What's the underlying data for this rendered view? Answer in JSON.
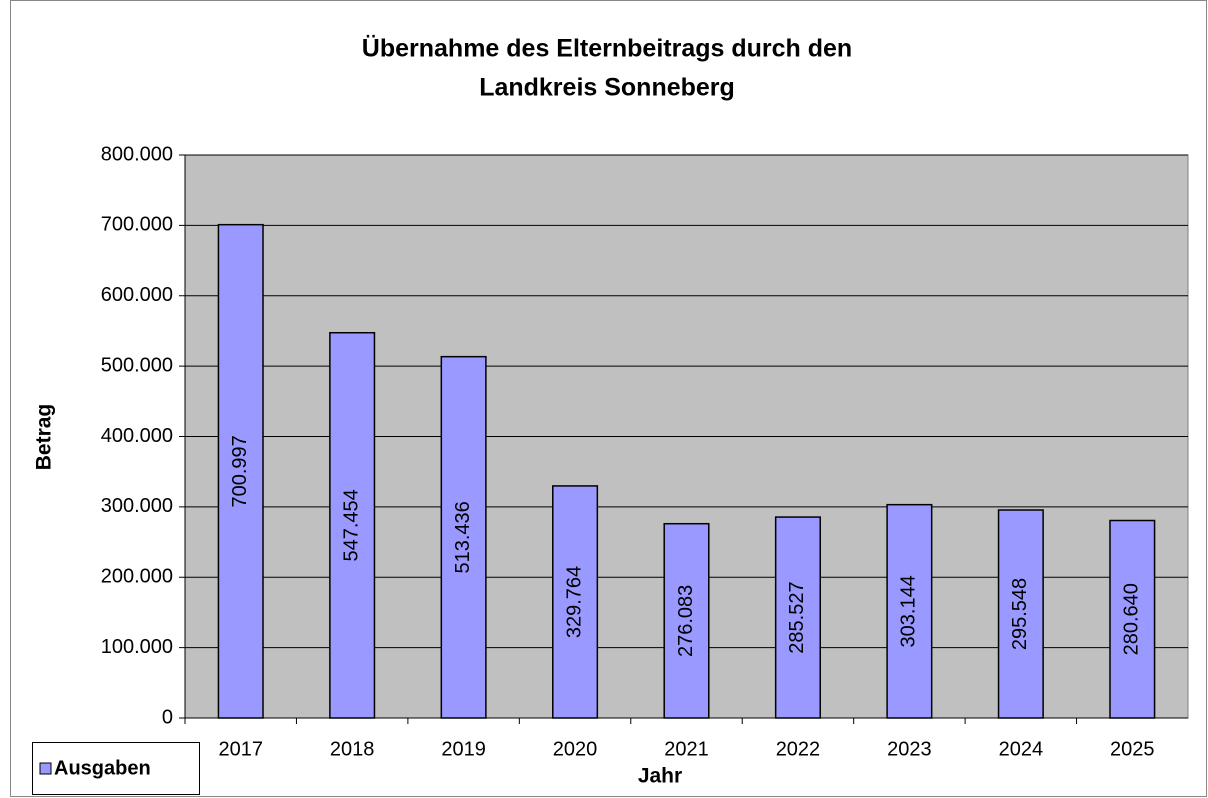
{
  "chart_data": {
    "type": "bar",
    "title": [
      "Übernahme des Elternbeitrags durch den",
      "Landkreis Sonneberg"
    ],
    "x_label": "Jahr",
    "y_label": "Betrag",
    "categories": [
      "2017",
      "2018",
      "2019",
      "2020",
      "2021",
      "2022",
      "2023",
      "2024",
      "2025"
    ],
    "series": [
      {
        "name": "Ausgaben",
        "color": "#9999ff",
        "values": [
          700997,
          547454,
          513436,
          329764,
          276083,
          285527,
          303144,
          295548,
          280640
        ],
        "value_labels": [
          "700.997",
          "547.454",
          "513.436",
          "329.764",
          "276.083",
          "285.527",
          "303.144",
          "295.548",
          "280.640"
        ]
      }
    ],
    "ylim": [
      0,
      800000
    ],
    "yticks": [
      0,
      {
        "value": 100000,
        "label": "100.000"
      },
      {
        "value": 200000,
        "label": "200.000"
      },
      {
        "value": 300000,
        "label": "300.000"
      },
      {
        "value": 400000,
        "label": "400.000"
      },
      {
        "value": 500000,
        "label": "500.000"
      },
      {
        "value": 600000,
        "label": "600.000"
      },
      {
        "value": 700000,
        "label": "700.000"
      },
      {
        "value": 800000,
        "label": "800.000"
      }
    ],
    "grid": true,
    "legend": "bottom-left"
  }
}
